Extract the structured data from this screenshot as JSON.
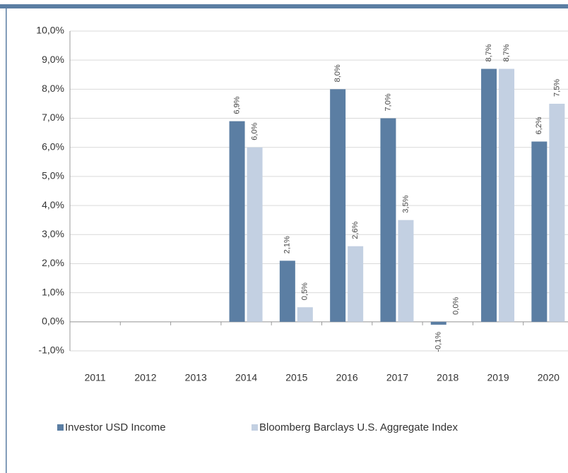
{
  "chart_data": {
    "type": "bar",
    "categories": [
      "2011",
      "2012",
      "2013",
      "2014",
      "2015",
      "2016",
      "2017",
      "2018",
      "2019",
      "2020"
    ],
    "series": [
      {
        "name": "Investor USD Income",
        "color": "#5b7ea3",
        "values": [
          null,
          null,
          null,
          6.9,
          2.1,
          8.0,
          7.0,
          -0.1,
          8.7,
          6.2
        ],
        "value_labels": [
          null,
          null,
          null,
          "6,9%",
          "2,1%",
          "8,0%",
          "7,0%",
          "-0,1%",
          "8,7%",
          "6,2%"
        ]
      },
      {
        "name": "Bloomberg Barclays U.S. Aggregate Index",
        "color": "#c3d0e2",
        "values": [
          null,
          null,
          null,
          6.0,
          0.5,
          2.6,
          3.5,
          0.0,
          8.7,
          7.5
        ],
        "value_labels": [
          null,
          null,
          null,
          "6,0%",
          "0,5%",
          "2,6%",
          "3,5%",
          "0,0%",
          "8,7%",
          "7,5%"
        ]
      }
    ],
    "ylim": [
      -1,
      10
    ],
    "yticks": [
      {
        "value": -1,
        "label": "-1,0%"
      },
      {
        "value": 0,
        "label": "0,0%"
      },
      {
        "value": 1,
        "label": "1,0%"
      },
      {
        "value": 2,
        "label": "2,0%"
      },
      {
        "value": 3,
        "label": "3,0%"
      },
      {
        "value": 4,
        "label": "4,0%"
      },
      {
        "value": 5,
        "label": "5,0%"
      },
      {
        "value": 6,
        "label": "6,0%"
      },
      {
        "value": 7,
        "label": "7,0%"
      },
      {
        "value": 8,
        "label": "8,0%"
      },
      {
        "value": 9,
        "label": "9,0%"
      },
      {
        "value": 10,
        "label": "10,0%"
      }
    ],
    "grid": true,
    "legend": "bottom"
  }
}
